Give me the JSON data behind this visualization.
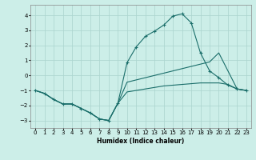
{
  "xlabel": "Humidex (Indice chaleur)",
  "xlim": [
    -0.5,
    23.5
  ],
  "ylim": [
    -3.5,
    4.7
  ],
  "yticks": [
    -3,
    -2,
    -1,
    0,
    1,
    2,
    3,
    4
  ],
  "xticks": [
    0,
    1,
    2,
    3,
    4,
    5,
    6,
    7,
    8,
    9,
    10,
    11,
    12,
    13,
    14,
    15,
    16,
    17,
    18,
    19,
    20,
    21,
    22,
    23
  ],
  "bg_color": "#cceee8",
  "line_color": "#1a6e6a",
  "grid_color": "#aad4ce",
  "series": [
    {
      "x": [
        0,
        1,
        2,
        3,
        4,
        5,
        6,
        7,
        8,
        9,
        10,
        11,
        12,
        13,
        14,
        15,
        16,
        17,
        18,
        19,
        20,
        21,
        22,
        23
      ],
      "y": [
        -1.0,
        -1.2,
        -1.6,
        -1.9,
        -1.9,
        -2.2,
        -2.5,
        -2.9,
        -3.0,
        -1.85,
        0.85,
        1.9,
        2.6,
        2.95,
        3.35,
        3.95,
        4.1,
        3.5,
        1.5,
        0.3,
        -0.15,
        -0.65,
        -0.9,
        -1.0
      ],
      "marker": true
    },
    {
      "x": [
        0,
        1,
        2,
        3,
        4,
        5,
        6,
        7,
        8,
        9,
        10,
        11,
        12,
        13,
        14,
        15,
        16,
        17,
        18,
        19,
        20,
        21,
        22,
        23
      ],
      "y": [
        -1.0,
        -1.2,
        -1.6,
        -1.9,
        -1.9,
        -2.2,
        -2.5,
        -2.9,
        -3.0,
        -1.85,
        -0.45,
        -0.3,
        -0.15,
        0.0,
        0.15,
        0.3,
        0.45,
        0.6,
        0.75,
        0.9,
        1.5,
        0.3,
        -0.9,
        -1.0
      ],
      "marker": false
    },
    {
      "x": [
        0,
        1,
        2,
        3,
        4,
        5,
        6,
        7,
        8,
        9,
        10,
        11,
        12,
        13,
        14,
        15,
        16,
        17,
        18,
        19,
        20,
        21,
        22,
        23
      ],
      "y": [
        -1.0,
        -1.2,
        -1.6,
        -1.9,
        -1.9,
        -2.2,
        -2.5,
        -2.9,
        -3.0,
        -1.85,
        -1.1,
        -1.0,
        -0.9,
        -0.8,
        -0.7,
        -0.65,
        -0.6,
        -0.55,
        -0.5,
        -0.5,
        -0.5,
        -0.6,
        -0.9,
        -1.0
      ],
      "marker": false
    }
  ]
}
